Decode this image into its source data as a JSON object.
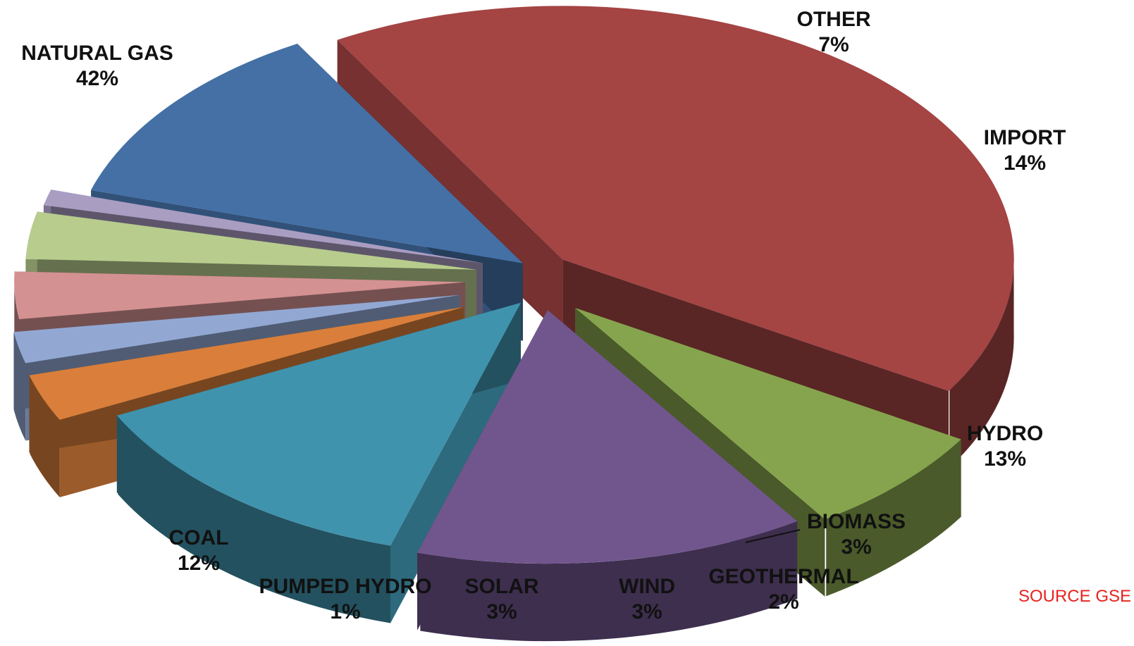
{
  "chart_data": {
    "type": "pie",
    "title": "",
    "style": "3d-exploded",
    "slices": [
      {
        "label": "NATURAL GAS",
        "value": 42,
        "value_label": "42%",
        "color": "#A44443"
      },
      {
        "label": "OTHER",
        "value": 7,
        "value_label": "7%",
        "color": "#86A44D"
      },
      {
        "label": "IMPORT",
        "value": 14,
        "value_label": "14%",
        "color": "#71568E"
      },
      {
        "label": "HYDRO",
        "value": 13,
        "value_label": "13%",
        "color": "#4093AD"
      },
      {
        "label": "BIOMASS",
        "value": 3,
        "value_label": "3%",
        "color": "#D97F3B"
      },
      {
        "label": "GEOTHERMAL",
        "value": 2,
        "value_label": "2%",
        "color": "#92A8D3"
      },
      {
        "label": "WIND",
        "value": 3,
        "value_label": "3%",
        "color": "#D49191"
      },
      {
        "label": "SOLAR",
        "value": 3,
        "value_label": "3%",
        "color": "#B8CC8E"
      },
      {
        "label": "PUMPED HYDRO",
        "value": 1,
        "value_label": "1%",
        "color": "#A99DC2"
      },
      {
        "label": "COAL",
        "value": 12,
        "value_label": "12%",
        "color": "#4470A6"
      }
    ],
    "source_note": "SOURCE GSE",
    "source_note_color": "#E8221E"
  }
}
